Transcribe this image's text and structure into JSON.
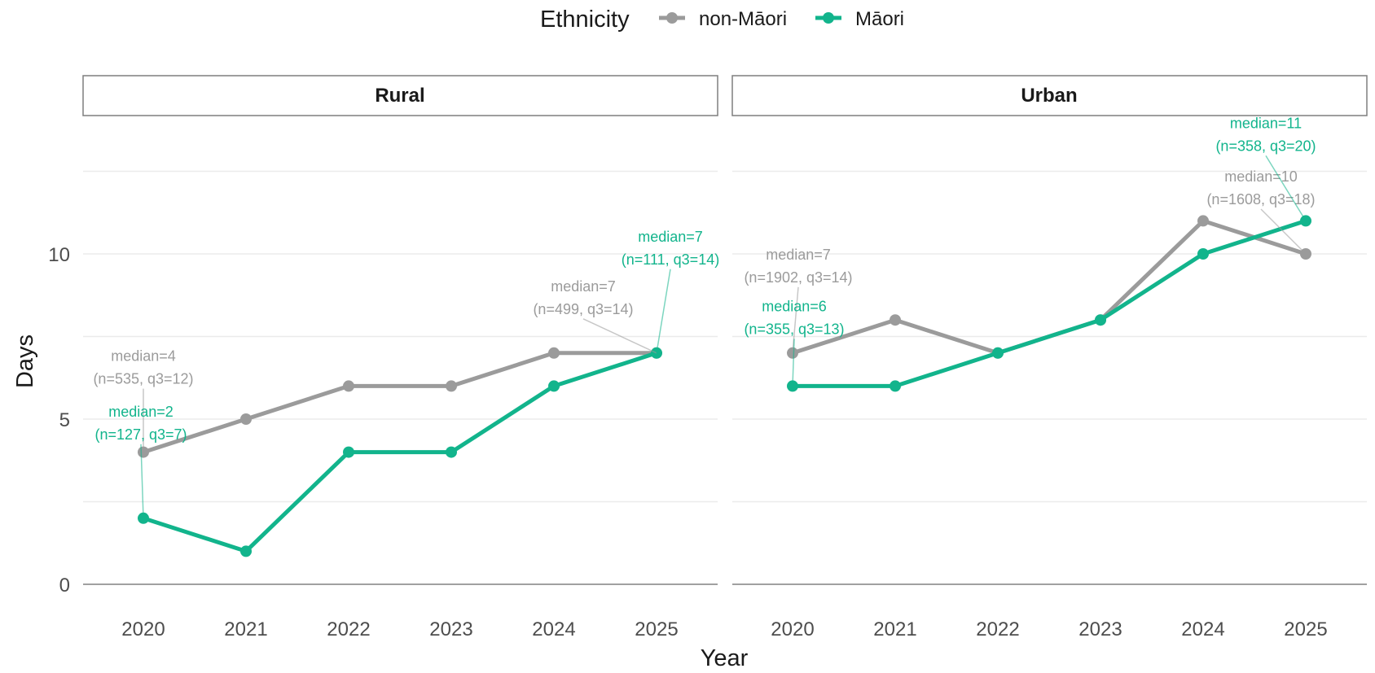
{
  "legend": {
    "title": "Ethnicity",
    "position": "top",
    "entries": [
      {
        "label": "non-Māori",
        "color": "#9b9b9b"
      },
      {
        "label": "Māori",
        "color": "#12b48c"
      }
    ]
  },
  "chart_data": {
    "type": "line",
    "xlabel": "Year",
    "ylabel": "Days",
    "x": [
      2020,
      2021,
      2022,
      2023,
      2024,
      2025
    ],
    "x_tick_labels": [
      "2020",
      "2021",
      "2022",
      "2023",
      "2024",
      "2025"
    ],
    "y_ticks": [
      0,
      5,
      10
    ],
    "y_tick_labels": [
      "0",
      "5",
      "10"
    ],
    "ylim": [
      0,
      12.5
    ],
    "grid": true,
    "facets": [
      {
        "name": "Rural",
        "series": [
          {
            "name": "non-Māori",
            "color": "#9b9b9b",
            "values": [
              4,
              5,
              6,
              6,
              7,
              7
            ],
            "annotations": [
              {
                "x": 2020,
                "line1": "median=4",
                "line2": "(n=535, q3=12)"
              },
              {
                "x": 2025,
                "line1": "median=7",
                "line2": "(n=499, q3=14)"
              }
            ]
          },
          {
            "name": "Māori",
            "color": "#12b48c",
            "values": [
              2,
              1,
              4,
              4,
              6,
              7
            ],
            "annotations": [
              {
                "x": 2020,
                "line1": "median=2",
                "line2": "(n=127, q3=7)"
              },
              {
                "x": 2025,
                "line1": "median=7",
                "line2": "(n=111, q3=14)"
              }
            ]
          }
        ]
      },
      {
        "name": "Urban",
        "series": [
          {
            "name": "non-Māori",
            "color": "#9b9b9b",
            "values": [
              7,
              8,
              7,
              8,
              11,
              10
            ],
            "annotations": [
              {
                "x": 2020,
                "line1": "median=7",
                "line2": "(n=1902, q3=14)"
              },
              {
                "x": 2025,
                "line1": "median=10",
                "line2": "(n=1608, q3=18)"
              }
            ]
          },
          {
            "name": "Māori",
            "color": "#12b48c",
            "values": [
              6,
              6,
              7,
              8,
              10,
              11
            ],
            "annotations": [
              {
                "x": 2020,
                "line1": "median=6",
                "line2": "(n=355, q3=13)"
              },
              {
                "x": 2025,
                "line1": "median=11",
                "line2": "(n=358, q3=20)"
              }
            ]
          }
        ]
      }
    ]
  }
}
